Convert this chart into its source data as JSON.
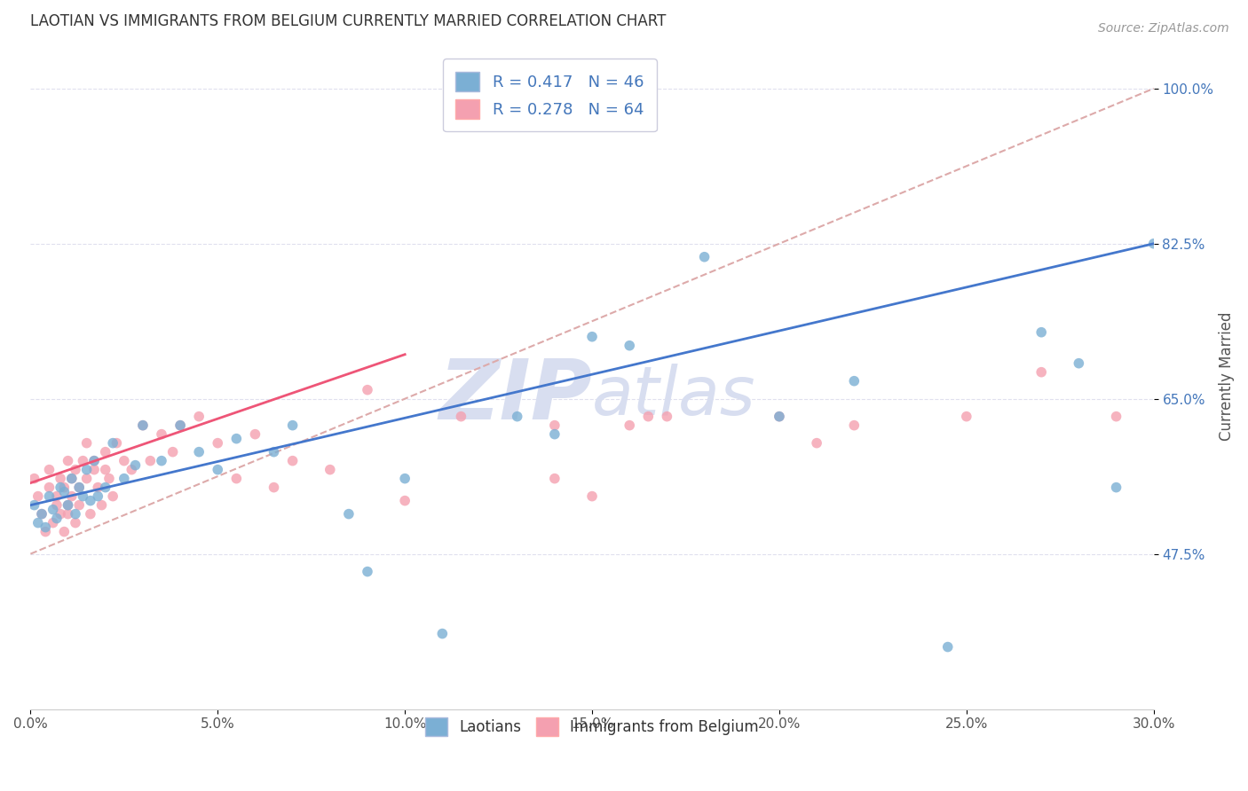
{
  "title": "LAOTIAN VS IMMIGRANTS FROM BELGIUM CURRENTLY MARRIED CORRELATION CHART",
  "source_text": "Source: ZipAtlas.com",
  "xlabel": "",
  "ylabel": "Currently Married",
  "x_min": 0.0,
  "x_max": 30.0,
  "y_min": 30.0,
  "y_max": 105.0,
  "yticks": [
    47.5,
    65.0,
    82.5,
    100.0
  ],
  "ytick_labels": [
    "47.5%",
    "65.0%",
    "82.5%",
    "100.0%"
  ],
  "xticks": [
    0.0,
    5.0,
    10.0,
    15.0,
    20.0,
    25.0,
    30.0
  ],
  "xtick_labels": [
    "0.0%",
    "5.0%",
    "10.0%",
    "15.0%",
    "20.0%",
    "25.0%",
    "30.0%"
  ],
  "legend_R1": "R = 0.417",
  "legend_N1": "N = 46",
  "legend_R2": "R = 0.278",
  "legend_N2": "N = 64",
  "color_blue": "#7BAFD4",
  "color_pink": "#F4A0B0",
  "color_line_blue": "#4477CC",
  "color_line_pink": "#EE5577",
  "color_diag": "#DDAAAA",
  "color_text_blue": "#4477BB",
  "watermark_color": "#D8DEF0",
  "background_color": "#FFFFFF",
  "grid_color": "#E0E0EE",
  "blue_line_x0": 0.0,
  "blue_line_y0": 53.0,
  "blue_line_x1": 30.0,
  "blue_line_y1": 82.5,
  "pink_line_x0": 0.0,
  "pink_line_y0": 55.5,
  "pink_line_x1": 10.0,
  "pink_line_y1": 70.0,
  "diag_line_x0": 0.0,
  "diag_line_y0": 47.5,
  "diag_line_x1": 30.0,
  "diag_line_y1": 100.0,
  "laotian_x": [
    0.1,
    0.2,
    0.3,
    0.4,
    0.5,
    0.6,
    0.7,
    0.8,
    0.9,
    1.0,
    1.1,
    1.2,
    1.3,
    1.4,
    1.5,
    1.6,
    1.7,
    1.8,
    2.0,
    2.2,
    2.5,
    2.8,
    3.0,
    3.5,
    4.0,
    4.5,
    5.0,
    5.5,
    6.5,
    7.0,
    8.5,
    10.0,
    11.0,
    13.0,
    15.0,
    16.0,
    18.0,
    20.0,
    22.0,
    24.5,
    27.0,
    28.0,
    29.0,
    30.0,
    9.0,
    14.0
  ],
  "laotian_y": [
    53.0,
    51.0,
    52.0,
    50.5,
    54.0,
    52.5,
    51.5,
    55.0,
    54.5,
    53.0,
    56.0,
    52.0,
    55.0,
    54.0,
    57.0,
    53.5,
    58.0,
    54.0,
    55.0,
    60.0,
    56.0,
    57.5,
    62.0,
    58.0,
    62.0,
    59.0,
    57.0,
    60.5,
    59.0,
    62.0,
    52.0,
    56.0,
    38.5,
    63.0,
    72.0,
    71.0,
    81.0,
    63.0,
    67.0,
    37.0,
    72.5,
    69.0,
    55.0,
    82.5,
    45.5,
    61.0
  ],
  "belgium_x": [
    0.1,
    0.2,
    0.3,
    0.4,
    0.5,
    0.5,
    0.6,
    0.7,
    0.7,
    0.8,
    0.8,
    0.9,
    0.9,
    1.0,
    1.0,
    1.0,
    1.1,
    1.1,
    1.2,
    1.2,
    1.3,
    1.3,
    1.4,
    1.5,
    1.5,
    1.6,
    1.7,
    1.7,
    1.8,
    1.9,
    2.0,
    2.0,
    2.1,
    2.2,
    2.3,
    2.5,
    2.7,
    3.0,
    3.2,
    3.5,
    3.8,
    4.0,
    4.5,
    5.0,
    5.5,
    6.0,
    6.5,
    7.0,
    8.0,
    9.0,
    10.0,
    11.5,
    14.0,
    16.0,
    17.0,
    20.0,
    21.0,
    22.0,
    25.0,
    27.0,
    29.0,
    14.0,
    15.0,
    16.5
  ],
  "belgium_y": [
    56.0,
    54.0,
    52.0,
    50.0,
    55.0,
    57.0,
    51.0,
    53.0,
    54.0,
    56.0,
    52.0,
    50.0,
    55.0,
    58.0,
    53.0,
    52.0,
    54.0,
    56.0,
    51.0,
    57.0,
    55.0,
    53.0,
    58.0,
    56.0,
    60.0,
    52.0,
    58.0,
    57.0,
    55.0,
    53.0,
    57.0,
    59.0,
    56.0,
    54.0,
    60.0,
    58.0,
    57.0,
    62.0,
    58.0,
    61.0,
    59.0,
    62.0,
    63.0,
    60.0,
    56.0,
    61.0,
    55.0,
    58.0,
    57.0,
    66.0,
    53.5,
    63.0,
    56.0,
    62.0,
    63.0,
    63.0,
    60.0,
    62.0,
    63.0,
    68.0,
    63.0,
    62.0,
    54.0,
    63.0
  ]
}
